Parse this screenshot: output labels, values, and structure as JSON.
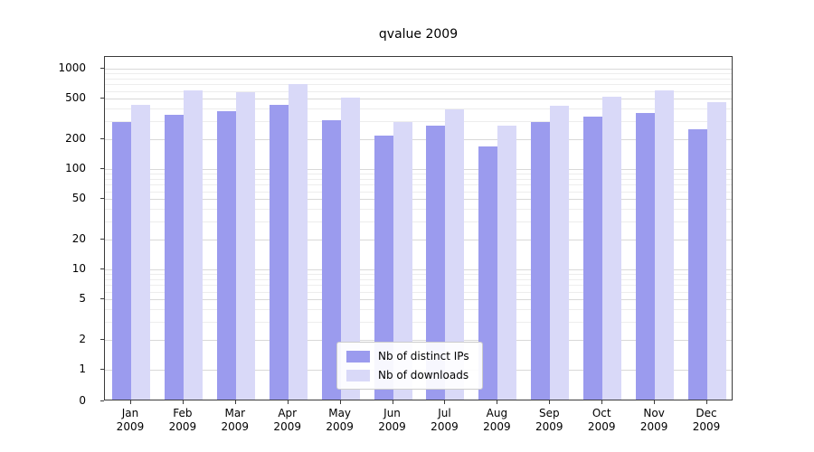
{
  "chart_data": {
    "type": "bar",
    "title": "qvalue 2009",
    "categories": [
      "Jan",
      "Feb",
      "Mar",
      "Apr",
      "May",
      "Jun",
      "Jul",
      "Aug",
      "Sep",
      "Oct",
      "Nov",
      "Dec"
    ],
    "x_second_line": "2009",
    "series": [
      {
        "name": "Nb of distinct IPs",
        "color": "#9b9bee",
        "values": [
          280,
          330,
          365,
          420,
          295,
          205,
          260,
          160,
          285,
          320,
          345,
          240
        ]
      },
      {
        "name": "Nb of downloads",
        "color": "#d9d9f8",
        "values": [
          420,
          580,
          565,
          670,
          490,
          280,
          380,
          260,
          410,
          500,
          580,
          450
        ]
      }
    ],
    "yscale": "symlog",
    "yticks": [
      0,
      1,
      2,
      5,
      10,
      20,
      50,
      100,
      200,
      500,
      1000
    ],
    "ylim": [
      0,
      1300
    ],
    "grid": true,
    "legend_position": "lower center",
    "xlabel": "",
    "ylabel": ""
  }
}
